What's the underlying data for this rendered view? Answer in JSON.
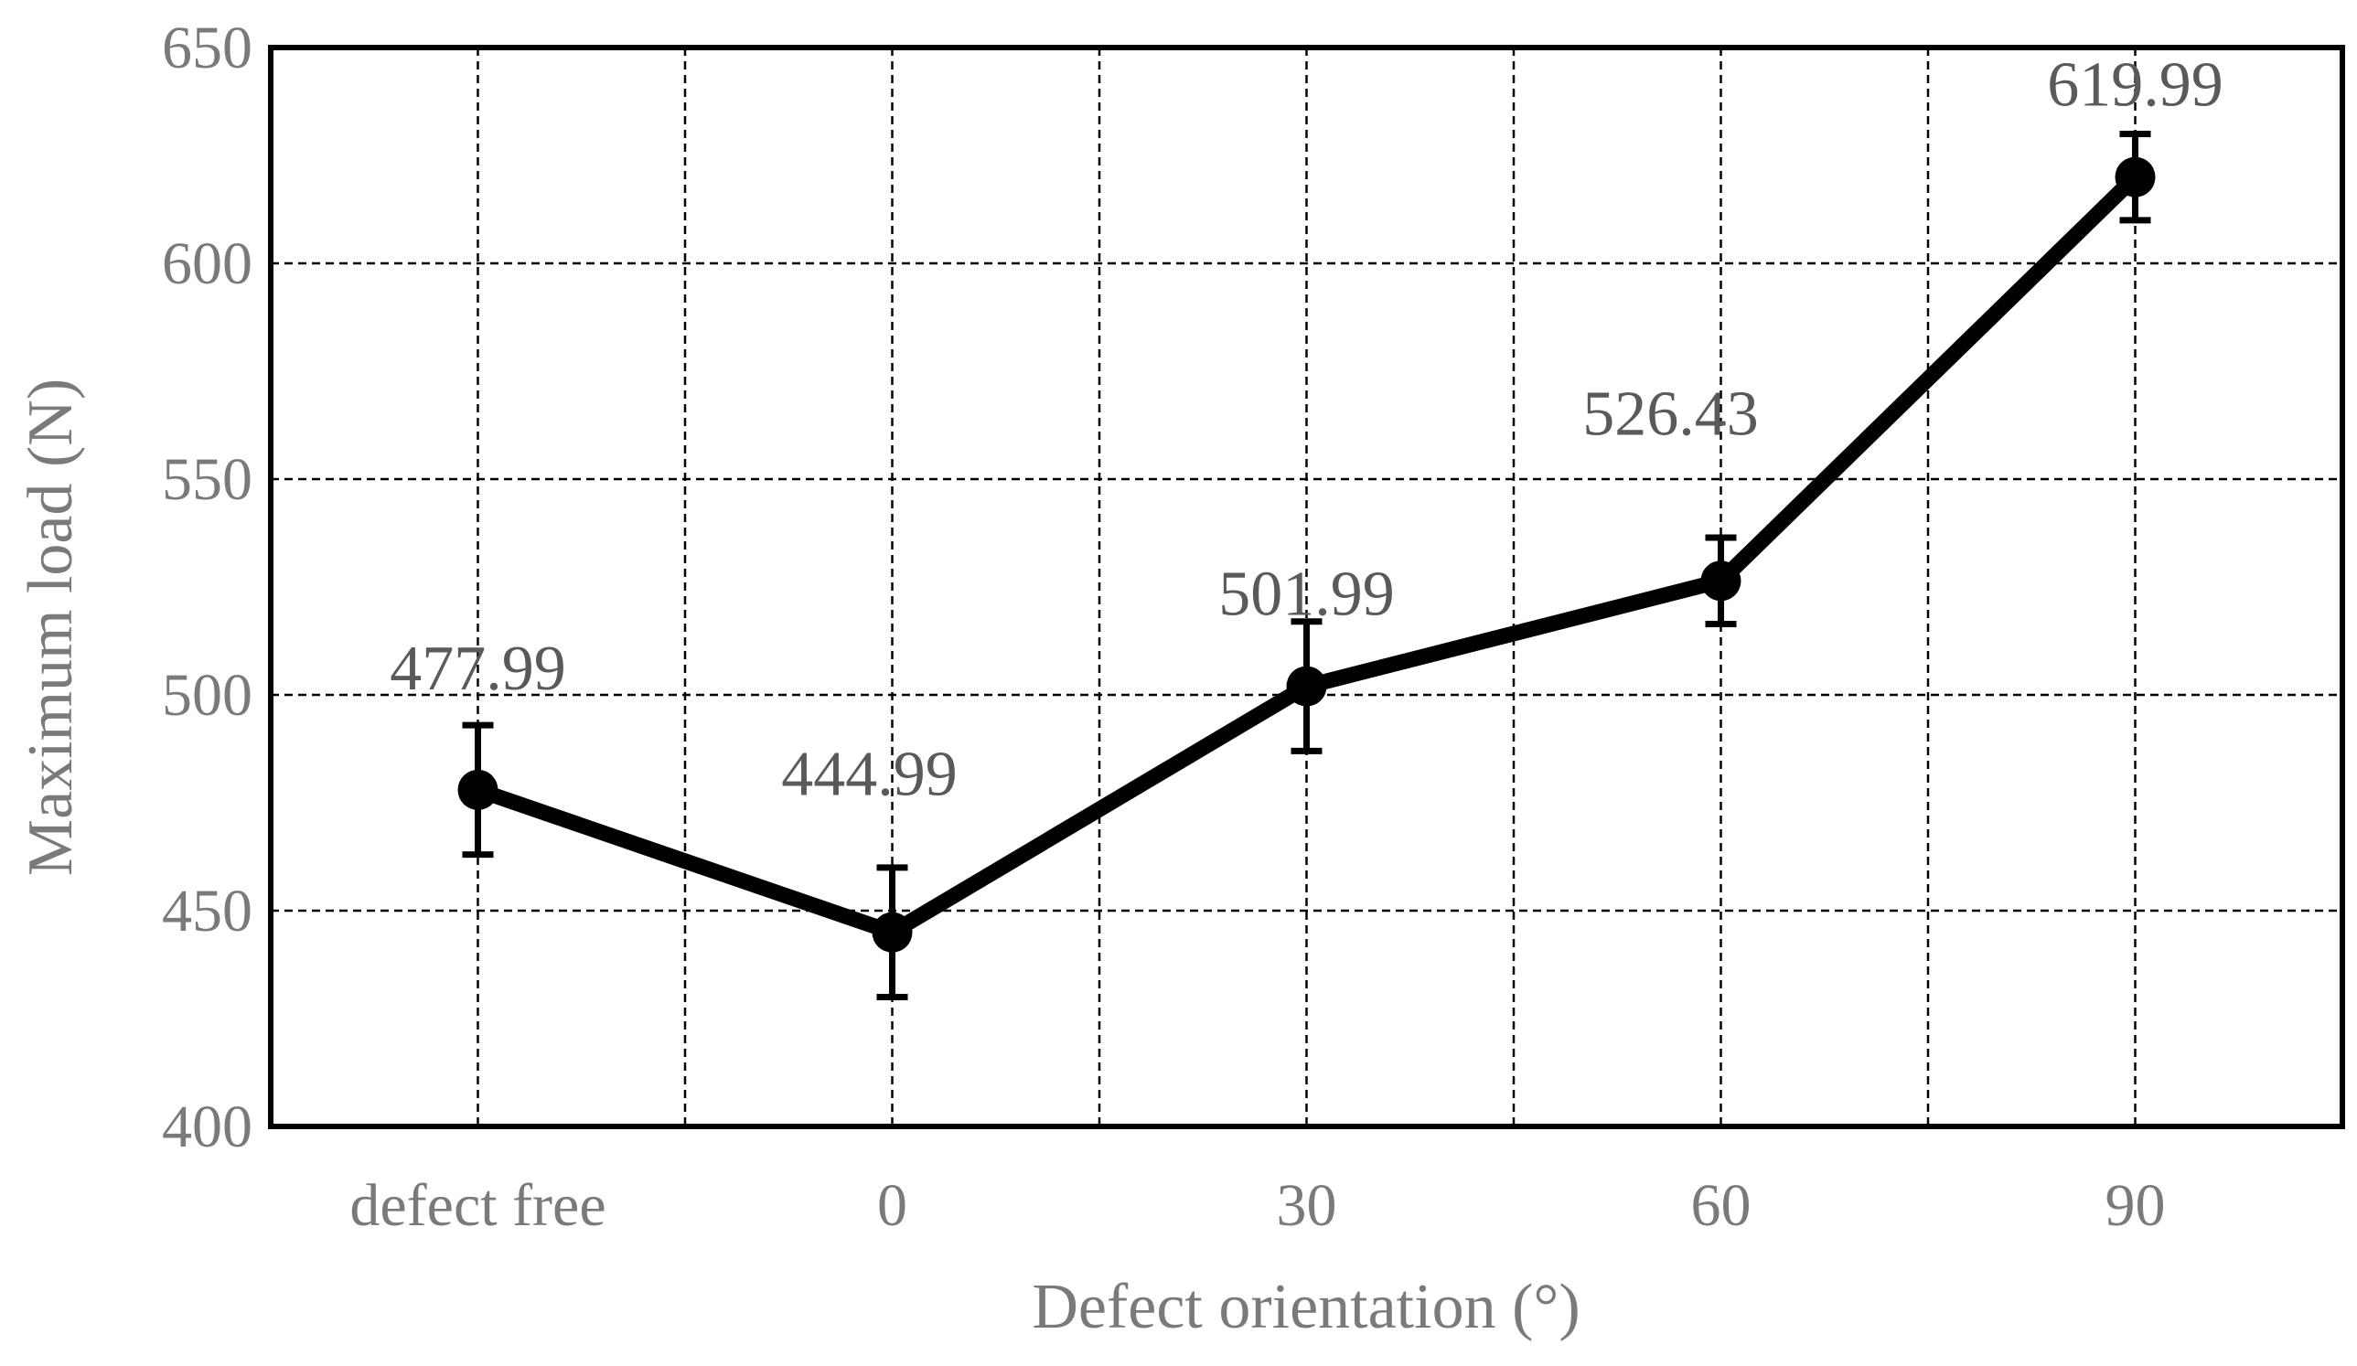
{
  "chart_data": {
    "type": "line",
    "title": "",
    "xlabel": "Defect orientation (°)",
    "ylabel": "Maximum load (N)",
    "categories": [
      "defect free",
      "0",
      "30",
      "60",
      "90"
    ],
    "ylim": [
      400,
      650
    ],
    "yticks": [
      "400",
      "450",
      "500",
      "550",
      "600",
      "650"
    ],
    "grid": true,
    "legend": "none",
    "series": [
      {
        "values": [
          477.99,
          444.99,
          501.99,
          526.43,
          619.99
        ],
        "error": [
          15,
          15,
          15,
          10,
          10
        ],
        "data_labels": [
          "477.99",
          "444.99",
          "501.99",
          "526.43",
          "619.99"
        ],
        "color": "#000000"
      }
    ]
  }
}
